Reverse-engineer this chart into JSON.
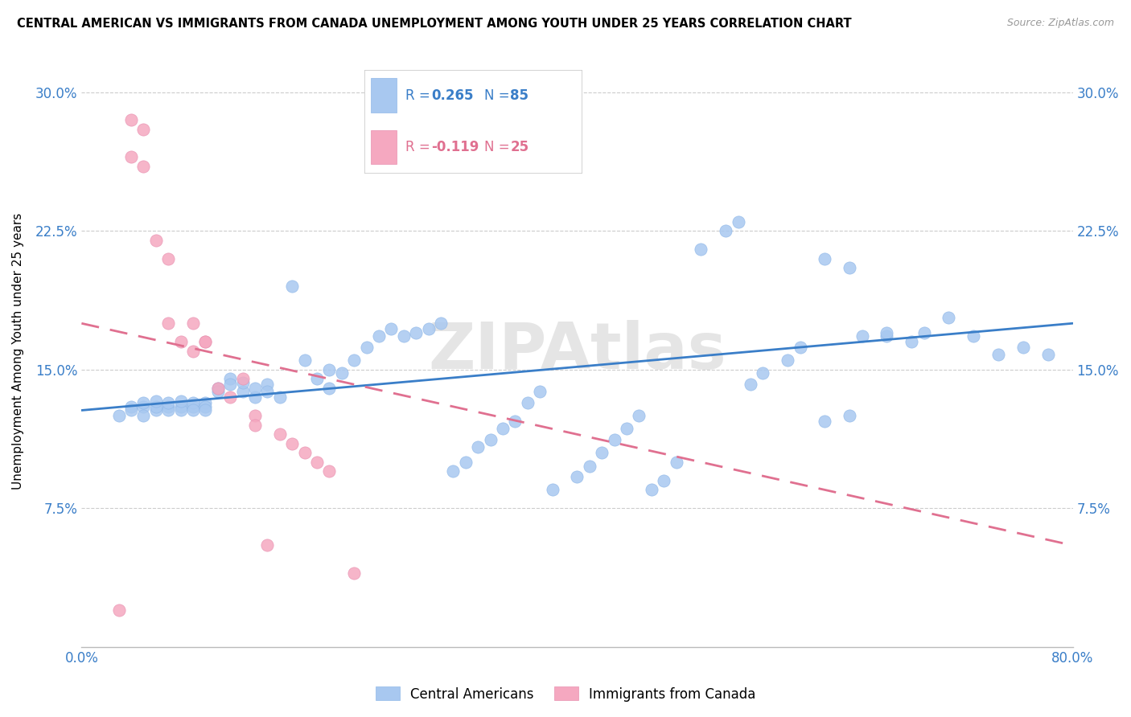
{
  "title": "CENTRAL AMERICAN VS IMMIGRANTS FROM CANADA UNEMPLOYMENT AMONG YOUTH UNDER 25 YEARS CORRELATION CHART",
  "source": "Source: ZipAtlas.com",
  "ylabel": "Unemployment Among Youth under 25 years",
  "xlim": [
    0.0,
    0.8
  ],
  "ylim": [
    0.0,
    0.32
  ],
  "yticks": [
    0.075,
    0.15,
    0.225,
    0.3
  ],
  "ytick_labels": [
    "7.5%",
    "15.0%",
    "22.5%",
    "30.0%"
  ],
  "xtick_start": "0.0%",
  "xtick_end": "80.0%",
  "r_blue": 0.265,
  "n_blue": 85,
  "r_pink": -0.119,
  "n_pink": 25,
  "blue_color": "#a8c8f0",
  "pink_color": "#f5a8c0",
  "blue_line_color": "#3a7ec8",
  "pink_line_color": "#e07090",
  "blue_label": "Central Americans",
  "pink_label": "Immigrants from Canada",
  "blue_scatter_x": [
    0.03,
    0.04,
    0.04,
    0.05,
    0.05,
    0.05,
    0.06,
    0.06,
    0.06,
    0.07,
    0.07,
    0.07,
    0.08,
    0.08,
    0.08,
    0.09,
    0.09,
    0.09,
    0.1,
    0.1,
    0.1,
    0.11,
    0.11,
    0.12,
    0.12,
    0.13,
    0.13,
    0.14,
    0.14,
    0.15,
    0.15,
    0.16,
    0.17,
    0.18,
    0.19,
    0.2,
    0.2,
    0.21,
    0.22,
    0.23,
    0.24,
    0.25,
    0.26,
    0.27,
    0.28,
    0.29,
    0.3,
    0.31,
    0.32,
    0.33,
    0.34,
    0.35,
    0.36,
    0.37,
    0.38,
    0.4,
    0.41,
    0.42,
    0.43,
    0.44,
    0.45,
    0.46,
    0.47,
    0.48,
    0.5,
    0.52,
    0.53,
    0.54,
    0.55,
    0.57,
    0.58,
    0.6,
    0.62,
    0.65,
    0.68,
    0.7,
    0.72,
    0.74,
    0.76,
    0.78,
    0.6,
    0.62,
    0.63,
    0.65,
    0.67
  ],
  "blue_scatter_y": [
    0.125,
    0.13,
    0.128,
    0.13,
    0.125,
    0.132,
    0.128,
    0.13,
    0.133,
    0.13,
    0.128,
    0.132,
    0.13,
    0.128,
    0.133,
    0.13,
    0.132,
    0.128,
    0.132,
    0.13,
    0.128,
    0.14,
    0.138,
    0.145,
    0.142,
    0.138,
    0.143,
    0.135,
    0.14,
    0.142,
    0.138,
    0.135,
    0.195,
    0.155,
    0.145,
    0.14,
    0.15,
    0.148,
    0.155,
    0.162,
    0.168,
    0.172,
    0.168,
    0.17,
    0.172,
    0.175,
    0.095,
    0.1,
    0.108,
    0.112,
    0.118,
    0.122,
    0.132,
    0.138,
    0.085,
    0.092,
    0.098,
    0.105,
    0.112,
    0.118,
    0.125,
    0.085,
    0.09,
    0.1,
    0.215,
    0.225,
    0.23,
    0.142,
    0.148,
    0.155,
    0.162,
    0.122,
    0.125,
    0.168,
    0.17,
    0.178,
    0.168,
    0.158,
    0.162,
    0.158,
    0.21,
    0.205,
    0.168,
    0.17,
    0.165
  ],
  "pink_scatter_x": [
    0.03,
    0.04,
    0.04,
    0.05,
    0.05,
    0.06,
    0.07,
    0.07,
    0.08,
    0.09,
    0.09,
    0.1,
    0.11,
    0.12,
    0.13,
    0.14,
    0.14,
    0.16,
    0.17,
    0.18,
    0.19,
    0.2,
    0.22,
    0.1,
    0.15
  ],
  "pink_scatter_y": [
    0.02,
    0.285,
    0.265,
    0.28,
    0.26,
    0.22,
    0.175,
    0.21,
    0.165,
    0.175,
    0.16,
    0.165,
    0.14,
    0.135,
    0.145,
    0.125,
    0.12,
    0.115,
    0.11,
    0.105,
    0.1,
    0.095,
    0.04,
    0.165,
    0.055
  ],
  "blue_trend_x0": 0.0,
  "blue_trend_y0": 0.128,
  "blue_trend_x1": 0.8,
  "blue_trend_y1": 0.175,
  "pink_trend_x0": 0.0,
  "pink_trend_y0": 0.175,
  "pink_trend_x1": 0.8,
  "pink_trend_y1": 0.055
}
